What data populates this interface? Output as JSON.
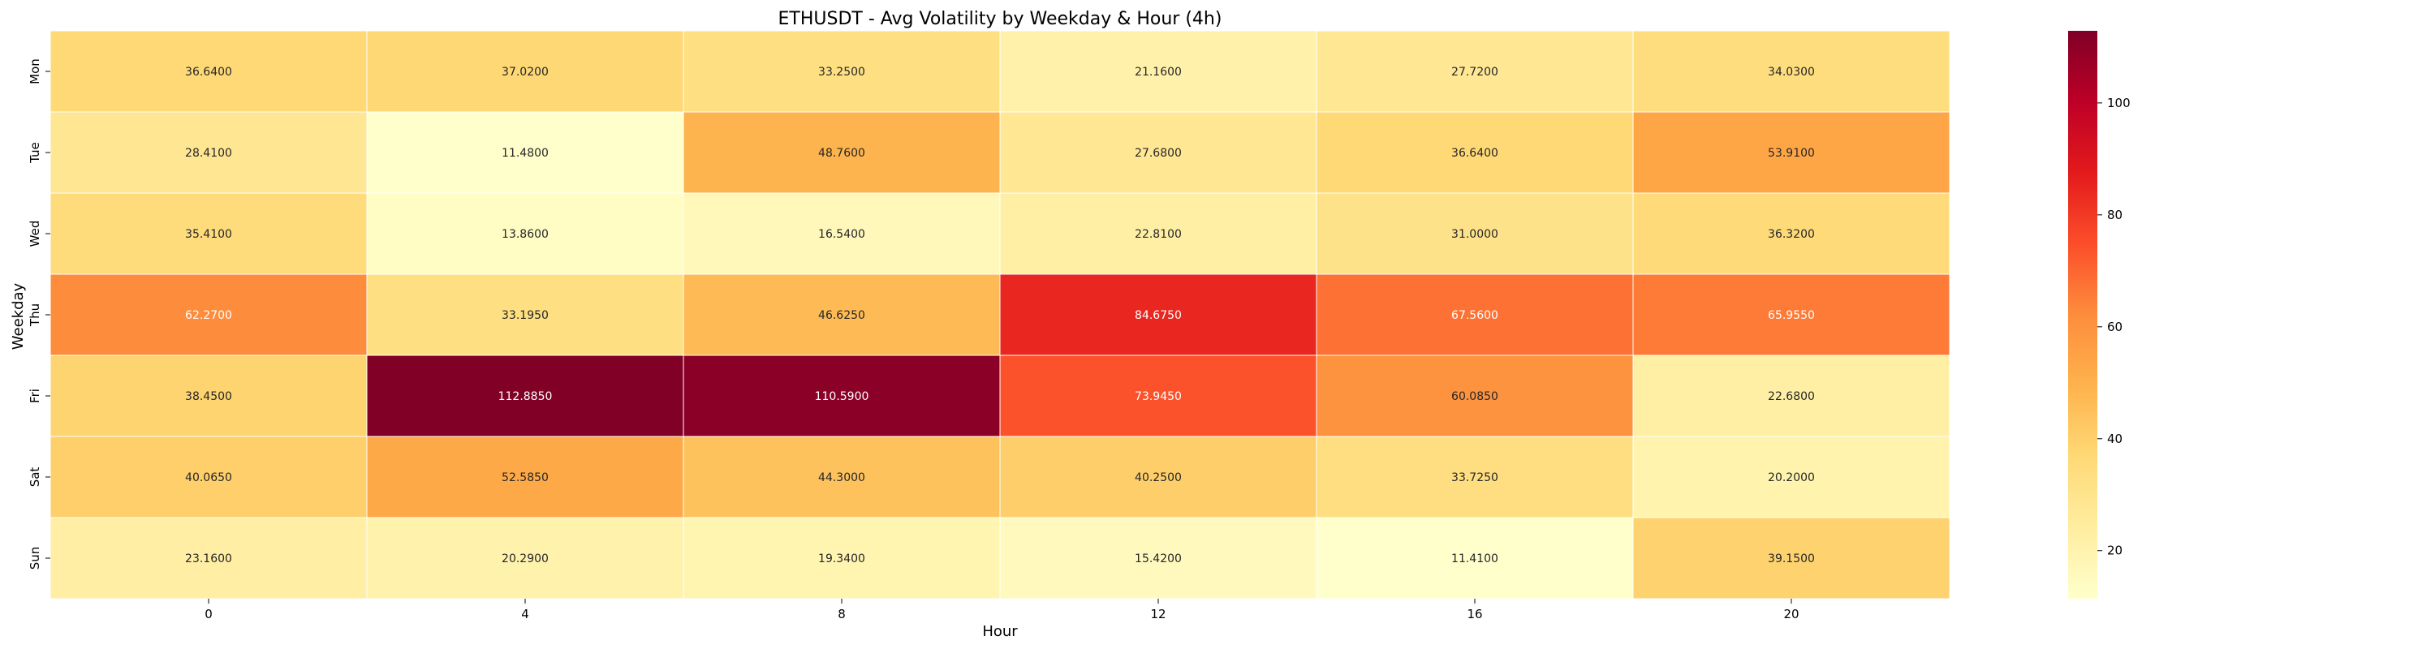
{
  "chart_data": {
    "type": "heatmap",
    "title": "ETHUSDT - Avg Volatility by Weekday & Hour (4h)",
    "xlabel": "Hour",
    "ylabel": "Weekday",
    "x": [
      "0",
      "4",
      "8",
      "12",
      "16",
      "20"
    ],
    "y": [
      "Mon",
      "Tue",
      "Wed",
      "Thu",
      "Fri",
      "Sat",
      "Sun"
    ],
    "values": [
      [
        36.64,
        37.02,
        33.25,
        21.16,
        27.72,
        34.03
      ],
      [
        28.41,
        11.48,
        48.76,
        27.68,
        36.64,
        53.91
      ],
      [
        35.41,
        13.86,
        16.54,
        22.81,
        31.0,
        36.32
      ],
      [
        62.27,
        33.195,
        46.625,
        84.675,
        67.56,
        65.955
      ],
      [
        38.45,
        112.885,
        110.59,
        73.945,
        60.085,
        22.68
      ],
      [
        40.065,
        52.585,
        44.3,
        40.25,
        33.725,
        20.2
      ],
      [
        23.16,
        20.29,
        19.34,
        15.42,
        11.41,
        39.15
      ]
    ],
    "value_format_decimals": 4,
    "colorbar": {
      "colormap": "YlOrRd",
      "vmin": 11.41,
      "vmax": 112.885,
      "ticks": [
        20,
        40,
        60,
        80,
        100
      ]
    },
    "grid": false,
    "legend": "colorbar-right"
  }
}
